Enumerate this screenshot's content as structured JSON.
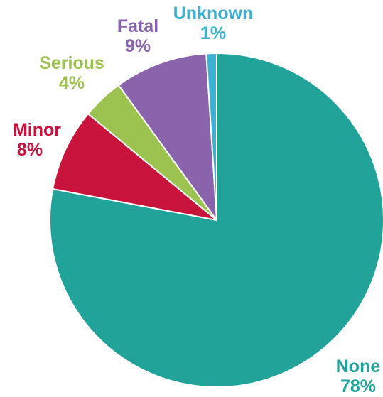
{
  "chart_data": {
    "type": "pie",
    "start": "top, clockwise",
    "slices": [
      {
        "label": "None",
        "value": 78,
        "value_label": "78%",
        "color": "#22a39a"
      },
      {
        "label": "Minor",
        "value": 8,
        "value_label": "8%",
        "color": "#c8143c"
      },
      {
        "label": "Serious",
        "value": 4,
        "value_label": "4%",
        "color": "#9cc24f"
      },
      {
        "label": "Fatal",
        "value": 9,
        "value_label": "9%",
        "color": "#8a63ad"
      },
      {
        "label": "Unknown",
        "value": 1,
        "value_label": "1%",
        "color": "#3cb1d3"
      }
    ],
    "legend": "none",
    "grid": false
  }
}
